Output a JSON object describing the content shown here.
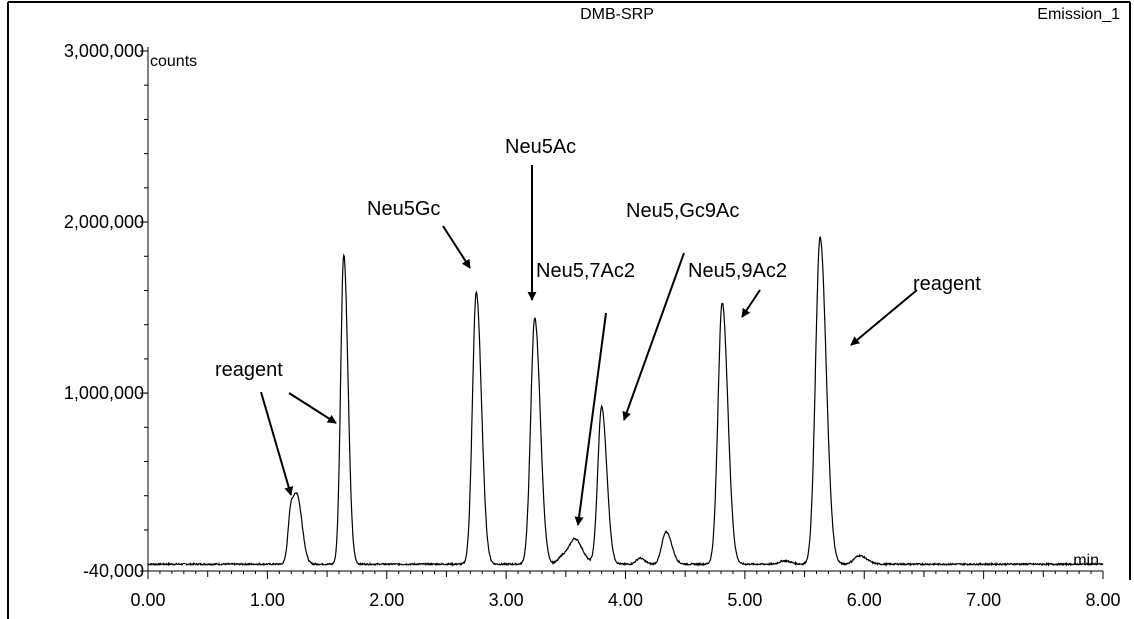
{
  "chart_data": {
    "type": "line",
    "title": "DMB-SRP",
    "channel": "Emission_1",
    "xlabel": "min",
    "ylabel": "counts",
    "xlim": [
      0,
      8
    ],
    "ylim": [
      -40000,
      3000000
    ],
    "x_ticks": [
      0,
      1,
      2,
      3,
      4,
      5,
      6,
      7,
      8
    ],
    "x_tick_labels": [
      "0.00",
      "1.00",
      "2.00",
      "3.00",
      "4.00",
      "5.00",
      "6.00",
      "7.00",
      "8.00"
    ],
    "y_tick_labels": [
      {
        "value": 3000000,
        "label": "3,000,000"
      },
      {
        "value": 2000000,
        "label": "2,000,000"
      },
      {
        "value": 1000000,
        "label": "1,000,000"
      },
      {
        "value": -40000,
        "label": "-40,000"
      }
    ],
    "baseline": 0,
    "peaks": [
      {
        "rt": 1.2,
        "height": 340000,
        "width": 0.025
      },
      {
        "rt": 1.26,
        "height": 320000,
        "width": 0.028
      },
      {
        "rt": 1.64,
        "height": 1810000,
        "width": 0.026
      },
      {
        "rt": 2.75,
        "height": 1590000,
        "width": 0.032
      },
      {
        "rt": 3.24,
        "height": 1440000,
        "width": 0.034
      },
      {
        "rt": 3.48,
        "height": 50000,
        "width": 0.04
      },
      {
        "rt": 3.58,
        "height": 140000,
        "width": 0.045
      },
      {
        "rt": 3.8,
        "height": 920000,
        "width": 0.032
      },
      {
        "rt": 4.12,
        "height": 35000,
        "width": 0.03
      },
      {
        "rt": 4.34,
        "height": 190000,
        "width": 0.035
      },
      {
        "rt": 4.81,
        "height": 1530000,
        "width": 0.035
      },
      {
        "rt": 5.33,
        "height": 20000,
        "width": 0.04
      },
      {
        "rt": 5.63,
        "height": 1910000,
        "width": 0.038
      },
      {
        "rt": 5.96,
        "height": 50000,
        "width": 0.045
      }
    ],
    "annotations": [
      {
        "text": "reagent"
      },
      {
        "text": "Neu5Gc"
      },
      {
        "text": "Neu5Ac"
      },
      {
        "text": "Neu5,7Ac2"
      },
      {
        "text": "Neu5,Gc9Ac"
      },
      {
        "text": "Neu5,9Ac2"
      },
      {
        "text": "reagent"
      }
    ]
  }
}
